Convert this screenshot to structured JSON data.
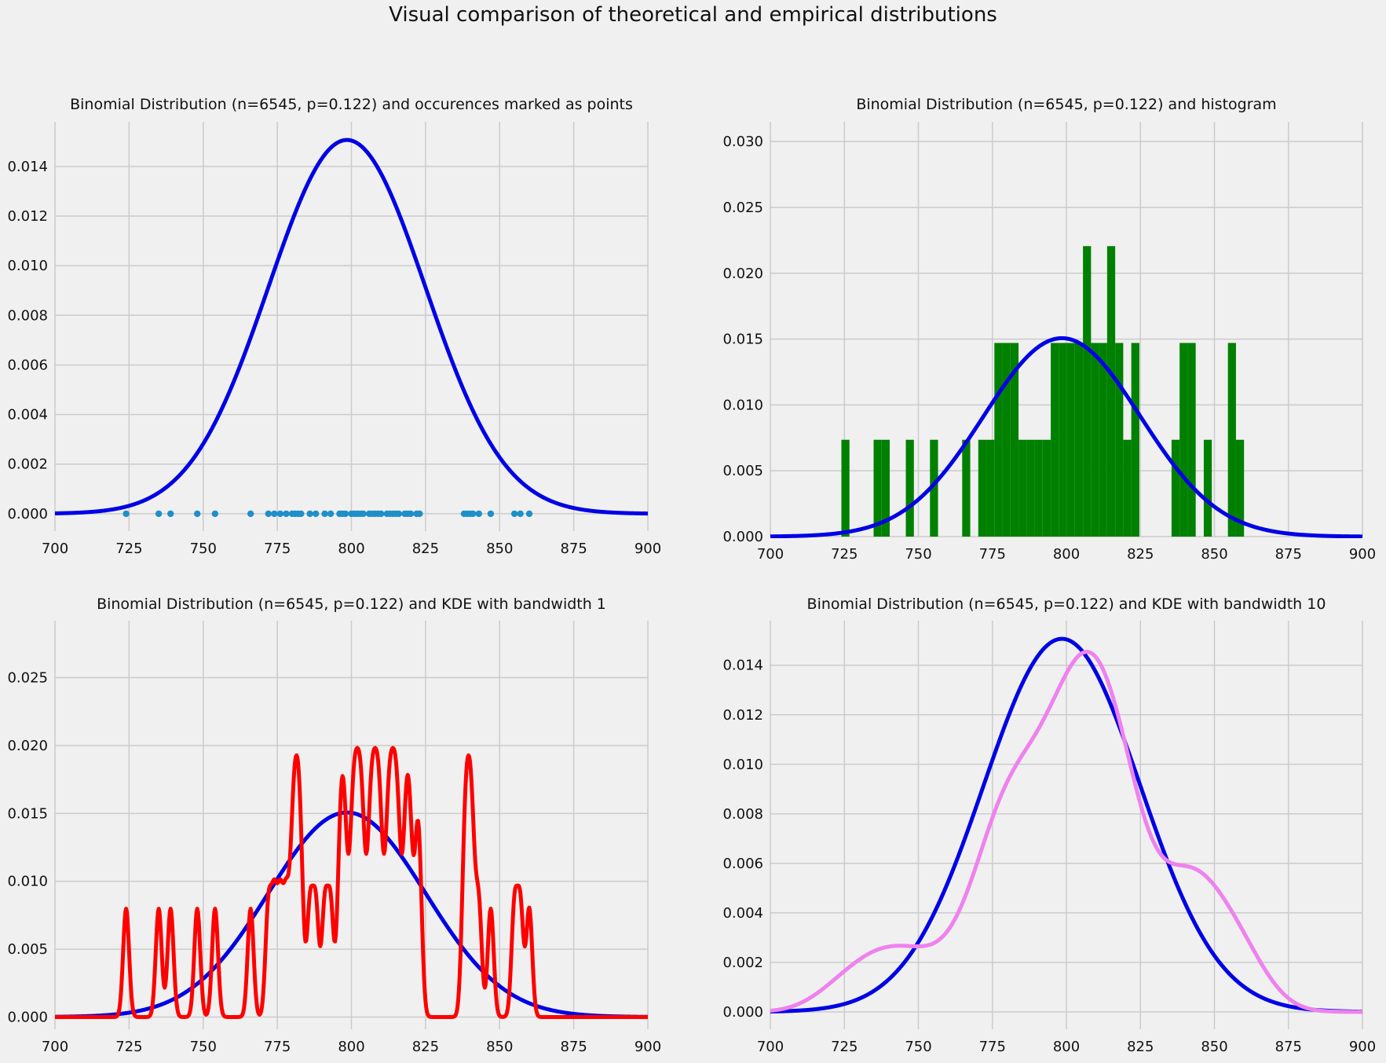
{
  "figure": {
    "suptitle": "Visual comparison of theoretical and empirical distributions"
  },
  "colors": {
    "background": "#f0f0f0",
    "theoretical": "#0000e6",
    "points": "#1f8fc8",
    "histogram": "#008000",
    "kde_bw1": "#ff0000",
    "kde_bw10": "#ee82ee",
    "grid": "#cbcbcb"
  },
  "samples": [
    724,
    735,
    739,
    748,
    754,
    766,
    772,
    774,
    776,
    778,
    780,
    781,
    782,
    783,
    786,
    788,
    791,
    793,
    796,
    797,
    798,
    800,
    801,
    802,
    803,
    804,
    806,
    807,
    808,
    809,
    810,
    812,
    813,
    814,
    815,
    816,
    818,
    819,
    820,
    822,
    823,
    838,
    839,
    840,
    841,
    843,
    847,
    855,
    857,
    860
  ],
  "chart_data": [
    {
      "type": "scatter",
      "title": "Binomial Distribution (n=6545, p=0.122) and occurences marked as points",
      "xlim": [
        700,
        900
      ],
      "ylim": [
        -0.0007,
        0.0158
      ],
      "xticks": [
        "700",
        "725",
        "750",
        "775",
        "800",
        "825",
        "850",
        "875",
        "900"
      ],
      "yticks": [
        "0.000",
        "0.002",
        "0.004",
        "0.006",
        "0.008",
        "0.010",
        "0.012",
        "0.014"
      ],
      "ytick_values": [
        0,
        0.002,
        0.004,
        0.006,
        0.008,
        0.01,
        0.012,
        0.014
      ],
      "grid": true,
      "series": [
        {
          "kind": "binomial_pmf",
          "n": 6545,
          "p": 0.122,
          "color": "#0000e6"
        },
        {
          "kind": "points",
          "color": "#1f8fc8",
          "y": 0
        }
      ]
    },
    {
      "type": "bar",
      "title": "Binomial Distribution (n=6545, p=0.122) and histogram",
      "xlim": [
        700,
        900
      ],
      "ylim": [
        0,
        0.0315
      ],
      "xticks": [
        "700",
        "725",
        "750",
        "775",
        "800",
        "825",
        "850",
        "875",
        "900"
      ],
      "yticks": [
        "0.000",
        "0.005",
        "0.010",
        "0.015",
        "0.020",
        "0.025",
        "0.030"
      ],
      "ytick_values": [
        0,
        0.005,
        0.01,
        0.015,
        0.02,
        0.025,
        0.03
      ],
      "grid": true,
      "bins": 50,
      "series": [
        {
          "kind": "histogram",
          "color": "#008000"
        },
        {
          "kind": "binomial_pmf",
          "n": 6545,
          "p": 0.122,
          "color": "#0000e6"
        }
      ]
    },
    {
      "type": "line",
      "title": "Binomial Distribution (n=6545, p=0.122) and KDE with bandwidth 1",
      "xlim": [
        700,
        900
      ],
      "ylim": [
        -0.0009,
        0.0292
      ],
      "xticks": [
        "700",
        "725",
        "750",
        "775",
        "800",
        "825",
        "850",
        "875",
        "900"
      ],
      "yticks": [
        "0.000",
        "0.005",
        "0.010",
        "0.015",
        "0.020",
        "0.025"
      ],
      "ytick_values": [
        0,
        0.005,
        0.01,
        0.015,
        0.02,
        0.025
      ],
      "grid": true,
      "series": [
        {
          "kind": "binomial_pmf",
          "n": 6545,
          "p": 0.122,
          "color": "#0000e6"
        },
        {
          "kind": "kde",
          "bandwidth": 1,
          "color": "#ff0000"
        }
      ]
    },
    {
      "type": "line",
      "title": "Binomial Distribution (n=6545, p=0.122) and KDE with bandwidth 10",
      "xlim": [
        700,
        900
      ],
      "ylim": [
        -0.0007,
        0.0158
      ],
      "xticks": [
        "700",
        "725",
        "750",
        "775",
        "800",
        "825",
        "850",
        "875",
        "900"
      ],
      "yticks": [
        "0.000",
        "0.002",
        "0.004",
        "0.006",
        "0.008",
        "0.010",
        "0.012",
        "0.014"
      ],
      "ytick_values": [
        0,
        0.002,
        0.004,
        0.006,
        0.008,
        0.01,
        0.012,
        0.014
      ],
      "grid": true,
      "series": [
        {
          "kind": "binomial_pmf",
          "n": 6545,
          "p": 0.122,
          "color": "#0000e6"
        },
        {
          "kind": "kde",
          "bandwidth": 10,
          "color": "#ee82ee"
        }
      ]
    }
  ]
}
